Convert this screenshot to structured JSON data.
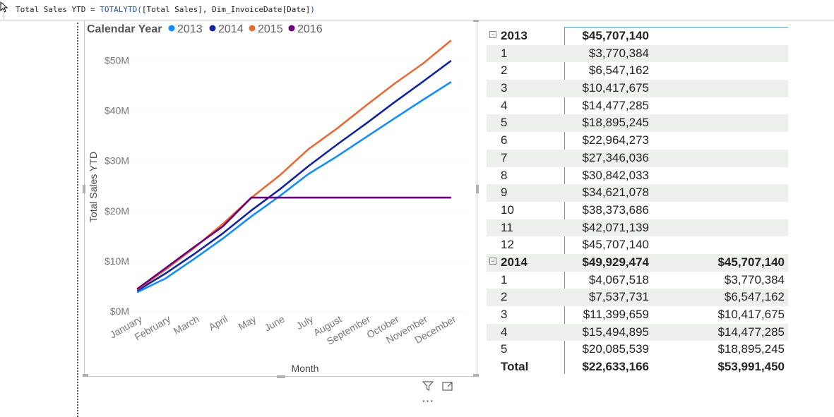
{
  "formula_bar": {
    "measure": "Total Sales YTD = ",
    "function": "TOTALYTD(",
    "arg1": "[Total Sales]",
    "sep": ", ",
    "arg2": "Dim_InvoiceDate[Date]",
    "close": ")"
  },
  "legend": {
    "title": "Calendar Year",
    "items": [
      {
        "label": "2013",
        "color": "#118dff"
      },
      {
        "label": "2014",
        "color": "#12239e"
      },
      {
        "label": "2015",
        "color": "#e66c37"
      },
      {
        "label": "2016",
        "color": "#6b007b"
      }
    ]
  },
  "chart_data": {
    "type": "line",
    "xlabel": "Month",
    "ylabel": "Total Sales YTD",
    "categories": [
      "January",
      "February",
      "March",
      "April",
      "May",
      "June",
      "July",
      "August",
      "September",
      "October",
      "November",
      "December"
    ],
    "ylim": [
      0,
      55000000
    ],
    "yticks": [
      "$0M",
      "$10M",
      "$20M",
      "$30M",
      "$40M",
      "$50M"
    ],
    "ytick_values": [
      0,
      10000000,
      20000000,
      30000000,
      40000000,
      50000000
    ],
    "grid": true,
    "legend_position": "top-left",
    "series": [
      {
        "name": "2013",
        "color": "#118dff",
        "values": [
          3770384,
          6547162,
          10417675,
          14477285,
          18895245,
          22964273,
          27346036,
          30842033,
          34621078,
          38373686,
          42071139,
          45707140
        ]
      },
      {
        "name": "2014",
        "color": "#12239e",
        "values": [
          4067518,
          7537731,
          11399659,
          15494895,
          20085539,
          24300000,
          28900000,
          33200000,
          37300000,
          41600000,
          45700000,
          49929474
        ]
      },
      {
        "name": "2015",
        "color": "#e66c37",
        "values": [
          4300000,
          8300000,
          12600000,
          17400000,
          22600000,
          27100000,
          32300000,
          36400000,
          40900000,
          45300000,
          49300000,
          53991450
        ]
      },
      {
        "name": "2016",
        "color": "#6b007b",
        "values": [
          4400000,
          8600000,
          12800000,
          16900000,
          22633166,
          22633166,
          22633166,
          22633166,
          22633166,
          22633166,
          22633166,
          22633166
        ]
      }
    ]
  },
  "table": {
    "rows": [
      {
        "label": "2013",
        "v1": "$45,707,140",
        "v2": "",
        "bold": true,
        "toggle": "⊟",
        "alt": false
      },
      {
        "label": "1",
        "v1": "$3,770,384",
        "v2": "",
        "alt": true
      },
      {
        "label": "2",
        "v1": "$6,547,162",
        "v2": "",
        "alt": false
      },
      {
        "label": "3",
        "v1": "$10,417,675",
        "v2": "",
        "alt": true
      },
      {
        "label": "4",
        "v1": "$14,477,285",
        "v2": "",
        "alt": false
      },
      {
        "label": "5",
        "v1": "$18,895,245",
        "v2": "",
        "alt": true
      },
      {
        "label": "6",
        "v1": "$22,964,273",
        "v2": "",
        "alt": false
      },
      {
        "label": "7",
        "v1": "$27,346,036",
        "v2": "",
        "alt": true
      },
      {
        "label": "8",
        "v1": "$30,842,033",
        "v2": "",
        "alt": false
      },
      {
        "label": "9",
        "v1": "$34,621,078",
        "v2": "",
        "alt": true
      },
      {
        "label": "10",
        "v1": "$38,373,686",
        "v2": "",
        "alt": false
      },
      {
        "label": "11",
        "v1": "$42,071,139",
        "v2": "",
        "alt": true
      },
      {
        "label": "12",
        "v1": "$45,707,140",
        "v2": "",
        "alt": false
      },
      {
        "label": "2014",
        "v1": "$49,929,474",
        "v2": "$45,707,140",
        "bold": true,
        "toggle": "⊟",
        "alt": true
      },
      {
        "label": "1",
        "v1": "$4,067,518",
        "v2": "$3,770,384",
        "alt": false
      },
      {
        "label": "2",
        "v1": "$7,537,731",
        "v2": "$6,547,162",
        "alt": true
      },
      {
        "label": "3",
        "v1": "$11,399,659",
        "v2": "$10,417,675",
        "alt": false
      },
      {
        "label": "4",
        "v1": "$15,494,895",
        "v2": "$14,477,285",
        "alt": true
      },
      {
        "label": "5",
        "v1": "$20,085,539",
        "v2": "$18,895,245",
        "alt": false
      },
      {
        "label": "Total",
        "v1": "$22,633,166",
        "v2": "$53,991,450",
        "bold": true,
        "total": true,
        "alt": false
      }
    ]
  },
  "icons": {
    "filter": "filter-icon",
    "focus": "focus-mode-icon",
    "more": "more-options-icon",
    "more_glyph": "···"
  }
}
